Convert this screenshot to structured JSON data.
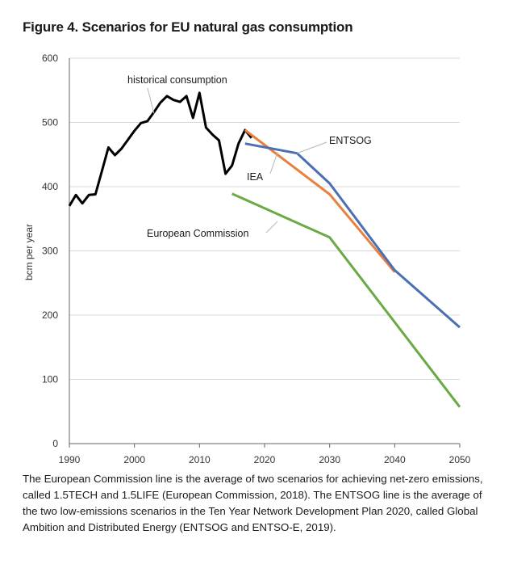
{
  "figure": {
    "title": "Figure 4. Scenarios for EU natural gas consumption",
    "caption": "The European Commission line is the average of two scenarios for achieving net-zero emissions, called 1.5TECH and 1.5LIFE (European Commission, 2018). The ENTSOG line is the average of the two low-emissions scenarios in the Ten Year Network Development Plan 2020, called Global Ambition and Distributed Energy (ENTSOG and ENTSO-E, 2019)."
  },
  "chart_data": {
    "type": "line",
    "title": "Figure 4. Scenarios for EU natural gas consumption",
    "xlabel": "",
    "ylabel": "bcm per year",
    "xlim": [
      1990,
      2050
    ],
    "ylim": [
      0,
      600
    ],
    "xticks": [
      1990,
      2000,
      2010,
      2020,
      2030,
      2040,
      2050
    ],
    "yticks": [
      0,
      100,
      200,
      300,
      400,
      500,
      600
    ],
    "grid": "horizontal",
    "series": [
      {
        "name": "historical consumption",
        "color": "#000000",
        "x": [
          1990,
          1991,
          1992,
          1993,
          1994,
          1995,
          1996,
          1997,
          1998,
          1999,
          2000,
          2001,
          2002,
          2003,
          2004,
          2005,
          2006,
          2007,
          2008,
          2009,
          2010,
          2011,
          2012,
          2013,
          2014,
          2015,
          2016,
          2017,
          2018
        ],
        "values": [
          370,
          387,
          374,
          387,
          388,
          424,
          461,
          449,
          459,
          473,
          487,
          499,
          502,
          516,
          531,
          541,
          535,
          532,
          541,
          507,
          546,
          492,
          481,
          472,
          420,
          433,
          467,
          488,
          476
        ]
      },
      {
        "name": "IEA",
        "color": "#E8803F",
        "x": [
          2017,
          2030,
          2040
        ],
        "values": [
          488,
          388,
          267
        ]
      },
      {
        "name": "ENTSOG",
        "color": "#4B6FB2",
        "x": [
          2017,
          2025,
          2030,
          2040,
          2050
        ],
        "values": [
          467,
          452,
          405,
          270,
          181
        ]
      },
      {
        "name": "European Commission",
        "color": "#6AAA44",
        "x": [
          2015,
          2030,
          2050
        ],
        "values": [
          389,
          321,
          57
        ]
      }
    ],
    "annotations": [
      {
        "text": "historical consumption",
        "series": "historical consumption"
      },
      {
        "text": "ENTSOG",
        "series": "ENTSOG"
      },
      {
        "text": "IEA",
        "series": "IEA"
      },
      {
        "text": "European Commission",
        "series": "European Commission"
      }
    ]
  }
}
